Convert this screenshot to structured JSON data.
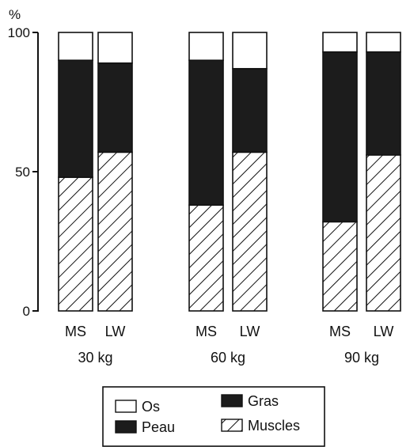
{
  "chart_data": {
    "type": "bar",
    "stacked": true,
    "ylabel": "%",
    "ylim": [
      0,
      100
    ],
    "yticks": [
      0,
      50,
      100
    ],
    "groups": [
      {
        "name": "30 kg",
        "categories": [
          "MS",
          "LW"
        ]
      },
      {
        "name": "60 kg",
        "categories": [
          "MS",
          "LW"
        ]
      },
      {
        "name": "90 kg",
        "categories": [
          "MS",
          "LW"
        ]
      }
    ],
    "series": [
      {
        "name": "Muscles",
        "pattern": "hatched",
        "values": [
          [
            48,
            57
          ],
          [
            38,
            57
          ],
          [
            32,
            56
          ]
        ]
      },
      {
        "name": "Peau",
        "pattern": "solid",
        "values": [
          [
            42,
            32
          ],
          [
            52,
            30
          ],
          [
            61,
            37
          ]
        ]
      },
      {
        "name": "Os",
        "pattern": "empty",
        "values": [
          [
            10,
            11
          ],
          [
            10,
            13
          ],
          [
            7,
            7
          ]
        ]
      }
    ],
    "legend": {
      "placement": "bottom",
      "items": [
        {
          "label": "Os",
          "pattern": "empty"
        },
        {
          "label": "Gras",
          "pattern": "solid"
        },
        {
          "label": "Peau",
          "pattern": "solid"
        },
        {
          "label": "Muscles",
          "pattern": "hatched"
        }
      ]
    },
    "grid": false
  },
  "colors": {
    "ink": "#111111",
    "fill_solid": "#1c1c1c",
    "background": "#ffffff"
  }
}
